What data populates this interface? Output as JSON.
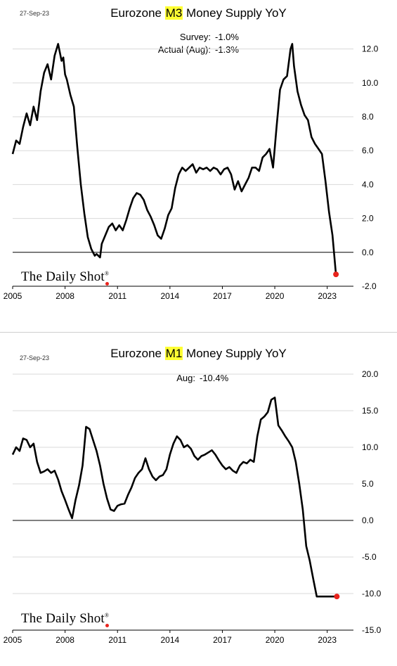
{
  "colors": {
    "line": "#000000",
    "marker": "#e8231c",
    "highlight": "#ffff33",
    "grid": "#d9d9d9"
  },
  "source": {
    "brand": "The Daily Shot",
    "reg_mark": "®"
  },
  "chart_data": [
    {
      "type": "line",
      "date": "27-Sep-23",
      "title_prefix": "Eurozone ",
      "title_highlight": "M3",
      "title_suffix": " Money Supply YoY",
      "annotations": [
        {
          "label": "Survey:",
          "value": "-1.0%"
        },
        {
          "label": "Actual (Aug):",
          "value": "-1.3%"
        }
      ],
      "x_ticks": [
        "2005",
        "2008",
        "2011",
        "2014",
        "2017",
        "2020",
        "2023"
      ],
      "y_ticks": [
        "-2.0",
        "0.0",
        "2.0",
        "4.0",
        "6.0",
        "8.0",
        "10.0",
        "12.0"
      ],
      "xlim": [
        2005.0,
        2024.5
      ],
      "ylim": [
        -2.0,
        12.4
      ],
      "grid": true,
      "series": [
        {
          "x": [
            2005.0,
            2005.2,
            2005.4,
            2005.6,
            2005.8,
            2006.0,
            2006.2,
            2006.4,
            2006.6,
            2006.8,
            2007.0,
            2007.2,
            2007.4,
            2007.6,
            2007.8,
            2007.9,
            2008.0,
            2008.1,
            2008.3,
            2008.5,
            2008.7,
            2008.9,
            2009.1,
            2009.3,
            2009.5,
            2009.7,
            2009.8,
            2010.0,
            2010.1,
            2010.3,
            2010.5,
            2010.7,
            2010.9,
            2011.1,
            2011.3,
            2011.5,
            2011.7,
            2011.9,
            2012.1,
            2012.3,
            2012.5,
            2012.7,
            2012.9,
            2013.1,
            2013.3,
            2013.5,
            2013.7,
            2013.9,
            2014.1,
            2014.3,
            2014.5,
            2014.7,
            2014.9,
            2015.1,
            2015.3,
            2015.5,
            2015.7,
            2015.9,
            2016.1,
            2016.3,
            2016.5,
            2016.7,
            2016.9,
            2017.1,
            2017.3,
            2017.5,
            2017.7,
            2017.9,
            2018.1,
            2018.3,
            2018.5,
            2018.7,
            2018.9,
            2019.1,
            2019.3,
            2019.5,
            2019.7,
            2019.9,
            2020.1,
            2020.3,
            2020.5,
            2020.7,
            2020.9,
            2021.0,
            2021.1,
            2021.3,
            2021.5,
            2021.7,
            2021.9,
            2022.1,
            2022.3,
            2022.5,
            2022.7,
            2022.9,
            2023.1,
            2023.3,
            2023.5
          ],
          "values": [
            5.8,
            6.6,
            6.4,
            7.4,
            8.2,
            7.5,
            8.6,
            7.8,
            9.5,
            10.6,
            11.1,
            10.2,
            11.6,
            12.3,
            11.3,
            11.5,
            10.5,
            10.2,
            9.3,
            8.6,
            6.2,
            4.0,
            2.3,
            0.9,
            0.2,
            -0.2,
            -0.1,
            -0.3,
            0.5,
            1.0,
            1.5,
            1.7,
            1.3,
            1.6,
            1.3,
            1.9,
            2.6,
            3.2,
            3.5,
            3.4,
            3.1,
            2.5,
            2.1,
            1.6,
            1.0,
            0.8,
            1.4,
            2.2,
            2.6,
            3.8,
            4.6,
            5.0,
            4.8,
            5.0,
            5.2,
            4.7,
            5.0,
            4.9,
            5.0,
            4.8,
            5.0,
            4.9,
            4.6,
            4.9,
            5.0,
            4.6,
            3.7,
            4.2,
            3.6,
            4.0,
            4.4,
            5.0,
            5.0,
            4.8,
            5.6,
            5.8,
            6.1,
            5.0,
            7.4,
            9.6,
            10.2,
            10.4,
            12.0,
            12.3,
            11.0,
            9.5,
            8.7,
            8.1,
            7.8,
            6.8,
            6.4,
            6.1,
            5.8,
            4.2,
            2.4,
            1.0,
            -1.3
          ]
        }
      ]
    },
    {
      "type": "line",
      "date": "27-Sep-23",
      "title_prefix": "Eurozone ",
      "title_highlight": "M1",
      "title_suffix": " Money Supply YoY",
      "annotations": [
        {
          "label": "Aug:",
          "value": "-10.4%"
        }
      ],
      "x_ticks": [
        "2005",
        "2008",
        "2011",
        "2014",
        "2017",
        "2020",
        "2023"
      ],
      "y_ticks": [
        "-15.0",
        "-10.0",
        "-5.0",
        "0.0",
        "5.0",
        "10.0",
        "15.0",
        "20.0"
      ],
      "xlim": [
        2005.0,
        2024.5
      ],
      "ylim": [
        -15.0,
        20.0
      ],
      "grid": true,
      "series": [
        {
          "x": [
            2005.0,
            2005.2,
            2005.4,
            2005.6,
            2005.8,
            2006.0,
            2006.2,
            2006.4,
            2006.6,
            2006.8,
            2007.0,
            2007.2,
            2007.4,
            2007.6,
            2007.8,
            2008.0,
            2008.2,
            2008.4,
            2008.6,
            2008.8,
            2009.0,
            2009.2,
            2009.4,
            2009.6,
            2009.8,
            2010.0,
            2010.2,
            2010.4,
            2010.6,
            2010.8,
            2011.0,
            2011.2,
            2011.4,
            2011.6,
            2011.8,
            2012.0,
            2012.2,
            2012.4,
            2012.6,
            2012.8,
            2013.0,
            2013.2,
            2013.4,
            2013.6,
            2013.8,
            2014.0,
            2014.2,
            2014.4,
            2014.6,
            2014.8,
            2015.0,
            2015.2,
            2015.4,
            2015.6,
            2015.8,
            2016.0,
            2016.2,
            2016.4,
            2016.6,
            2016.8,
            2017.0,
            2017.2,
            2017.4,
            2017.6,
            2017.8,
            2018.0,
            2018.2,
            2018.4,
            2018.6,
            2018.8,
            2019.0,
            2019.2,
            2019.4,
            2019.6,
            2019.8,
            2020.0,
            2020.2,
            2020.4,
            2020.6,
            2020.8,
            2021.0,
            2021.1,
            2021.2,
            2021.4,
            2021.6,
            2021.8,
            2022.0,
            2022.2,
            2022.4,
            2022.6,
            2022.8,
            2023.0,
            2023.2,
            2023.4,
            2023.55
          ],
          "values": [
            9.0,
            10.0,
            9.5,
            11.2,
            11.0,
            10.0,
            10.5,
            8.0,
            6.5,
            6.7,
            7.0,
            6.5,
            6.8,
            5.6,
            4.0,
            2.8,
            1.5,
            0.3,
            2.8,
            4.8,
            7.5,
            12.8,
            12.5,
            11.0,
            9.5,
            7.5,
            5.0,
            3.0,
            1.5,
            1.3,
            2.0,
            2.2,
            2.3,
            3.5,
            4.5,
            5.8,
            6.5,
            7.0,
            8.5,
            7.0,
            6.0,
            5.5,
            6.0,
            6.2,
            7.0,
            9.0,
            10.5,
            11.5,
            11.0,
            10.0,
            10.3,
            9.8,
            8.8,
            8.3,
            8.8,
            9.0,
            9.3,
            9.6,
            9.0,
            8.2,
            7.5,
            7.0,
            7.3,
            6.8,
            6.5,
            7.5,
            8.0,
            7.8,
            8.3,
            8.0,
            11.5,
            13.8,
            14.2,
            14.8,
            16.5,
            16.8,
            13.0,
            12.3,
            11.5,
            10.8,
            10.0,
            9.0,
            8.0,
            5.0,
            1.5,
            -3.5,
            -5.5,
            -8.0,
            -10.4,
            -10.4,
            -10.4,
            -10.4,
            -10.4,
            -10.4,
            -10.4
          ]
        }
      ]
    }
  ]
}
